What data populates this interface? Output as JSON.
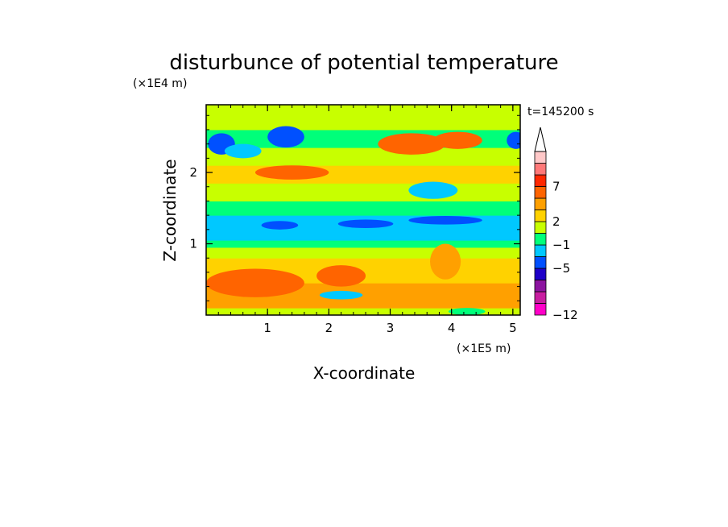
{
  "chart_data": {
    "type": "heatmap",
    "title": "disturbunce of potential temperature",
    "time_label": "t=145200 s",
    "xlabel": "X-coordinate",
    "ylabel": "Z-coordinate",
    "x_scale_note": "(×1E5 m)",
    "y_scale_note": "(×1E4 m)",
    "xlim": [
      0,
      5.12
    ],
    "ylim": [
      0,
      2.95
    ],
    "x_ticks": [
      1,
      2,
      3,
      4,
      5
    ],
    "y_ticks": [
      1,
      2
    ],
    "x_tick_labels": [
      "1",
      "2",
      "3",
      "4",
      "5"
    ],
    "y_tick_labels": [
      "1",
      "2"
    ],
    "colorbar": {
      "colors": [
        "#ff00c8",
        "#c81ea0",
        "#8c14a0",
        "#1e00c8",
        "#0050ff",
        "#00c8ff",
        "#00ff7a",
        "#c8ff00",
        "#ffd200",
        "#ffa000",
        "#ff6400",
        "#ff2800",
        "#ff7878",
        "#ffc8c8"
      ],
      "extend_color": "#ffffff",
      "tick_labels": [
        "-12",
        "-5",
        "-1",
        "2",
        "7"
      ],
      "tick_levels": [
        0,
        4,
        6,
        8,
        11
      ]
    },
    "grid": false,
    "field": {
      "description": "contoured field; values are colour-class indices into colorbar.colors",
      "x_range": [
        0,
        5.12
      ],
      "z_range": [
        0,
        2.95
      ],
      "layers": [
        {
          "z_top": 0.1,
          "class": 7
        },
        {
          "z_top": 0.45,
          "class": 9
        },
        {
          "z_top": 0.8,
          "class": 8
        },
        {
          "z_top": 0.95,
          "class": 7
        },
        {
          "z_top": 1.05,
          "class": 6
        },
        {
          "z_top": 1.4,
          "class": 5
        },
        {
          "z_top": 1.6,
          "class": 6
        },
        {
          "z_top": 1.85,
          "class": 7
        },
        {
          "z_top": 2.1,
          "class": 8
        },
        {
          "z_top": 2.35,
          "class": 7
        },
        {
          "z_top": 2.6,
          "class": 6
        },
        {
          "z_top": 2.95,
          "class": 7
        }
      ],
      "blobs": [
        {
          "x": 0.25,
          "z": 2.4,
          "rx": 0.22,
          "rz": 0.15,
          "class": 4
        },
        {
          "x": 1.3,
          "z": 2.5,
          "rx": 0.3,
          "rz": 0.15,
          "class": 4
        },
        {
          "x": 0.6,
          "z": 2.3,
          "rx": 0.3,
          "rz": 0.1,
          "class": 5
        },
        {
          "x": 1.2,
          "z": 1.26,
          "rx": 0.3,
          "rz": 0.06,
          "class": 4
        },
        {
          "x": 2.6,
          "z": 1.28,
          "rx": 0.45,
          "rz": 0.06,
          "class": 4
        },
        {
          "x": 3.9,
          "z": 1.33,
          "rx": 0.6,
          "rz": 0.06,
          "class": 4
        },
        {
          "x": 3.7,
          "z": 1.75,
          "rx": 0.4,
          "rz": 0.12,
          "class": 5
        },
        {
          "x": 3.35,
          "z": 2.4,
          "rx": 0.55,
          "rz": 0.15,
          "class": 10
        },
        {
          "x": 1.4,
          "z": 2.0,
          "rx": 0.6,
          "rz": 0.1,
          "class": 10
        },
        {
          "x": 4.1,
          "z": 2.45,
          "rx": 0.4,
          "rz": 0.12,
          "class": 10
        },
        {
          "x": 0.8,
          "z": 0.45,
          "rx": 0.8,
          "rz": 0.2,
          "class": 10
        },
        {
          "x": 2.2,
          "z": 0.55,
          "rx": 0.4,
          "rz": 0.15,
          "class": 10
        },
        {
          "x": 3.9,
          "z": 0.75,
          "rx": 0.25,
          "rz": 0.25,
          "class": 9
        },
        {
          "x": 5.05,
          "z": 2.45,
          "rx": 0.15,
          "rz": 0.12,
          "class": 4
        },
        {
          "x": 2.2,
          "z": 0.28,
          "rx": 0.35,
          "rz": 0.06,
          "class": 5
        },
        {
          "x": 4.25,
          "z": 0.05,
          "rx": 0.3,
          "rz": 0.05,
          "class": 6
        }
      ]
    }
  }
}
